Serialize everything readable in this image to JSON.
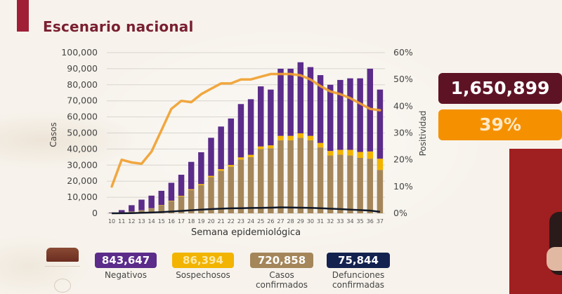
{
  "header": {
    "title": "Escenario nacional"
  },
  "summary": {
    "total": "1,650,899",
    "positivity": "39%"
  },
  "legend": [
    {
      "value": "843,647",
      "label": "Negativos",
      "color": "#5b2c8a"
    },
    {
      "value": "86,394",
      "label": "Sospechosos",
      "color": "#f2b400"
    },
    {
      "value": "720,858",
      "label": "Casos confirmados",
      "color": "#a4865a"
    },
    {
      "value": "75,844",
      "label": "Defunciones confirmadas",
      "color": "#13224f"
    }
  ],
  "colors": {
    "negativos": "#5b2c8a",
    "sospechosos": "#f2b400",
    "confirmados": "#a4865a",
    "defunciones": "#111827",
    "positividad": "#f0a030",
    "grid": "#d8d4ce"
  },
  "chart_data": {
    "type": "bar",
    "title": "Escenario nacional",
    "xlabel": "Semana epidemiológica",
    "ylabel": "Casos",
    "y2label": "Positividad",
    "ylim": [
      0,
      100000
    ],
    "y2lim": [
      0,
      0.6
    ],
    "y_ticks": [
      "0",
      "10,000",
      "20,000",
      "30,000",
      "40,000",
      "50,000",
      "60,000",
      "70,000",
      "80,000",
      "90,000",
      "100,000"
    ],
    "y2_ticks": [
      "0%",
      "10%",
      "20%",
      "30%",
      "40%",
      "50%",
      "60%"
    ],
    "grid": true,
    "stacked": true,
    "categories": [
      "10",
      "11",
      "12",
      "13",
      "14",
      "15",
      "16",
      "17",
      "18",
      "19",
      "20",
      "21",
      "22",
      "23",
      "24",
      "25",
      "26",
      "27",
      "28",
      "29",
      "30",
      "31",
      "32",
      "33",
      "34",
      "35",
      "36",
      "37"
    ],
    "series": [
      {
        "name": "Casos confirmados",
        "kind": "bar",
        "values": [
          200,
          600,
          1100,
          1800,
          3000,
          5000,
          7500,
          10500,
          14500,
          17500,
          22500,
          26500,
          29000,
          33500,
          35000,
          40000,
          40500,
          45500,
          45500,
          47000,
          45500,
          41000,
          36000,
          36500,
          36000,
          34500,
          34000,
          27000
        ]
      },
      {
        "name": "Sospechosos",
        "kind": "bar",
        "values": [
          0,
          0,
          50,
          100,
          150,
          200,
          300,
          400,
          500,
          700,
          800,
          1000,
          1100,
          1300,
          1400,
          1600,
          1800,
          2700,
          2700,
          2800,
          2700,
          2800,
          2800,
          3000,
          3500,
          3700,
          4500,
          7000
        ]
      },
      {
        "name": "Negativos",
        "kind": "bar",
        "values": [
          300,
          1400,
          3900,
          6600,
          7850,
          8800,
          11200,
          13100,
          17000,
          19800,
          23700,
          26500,
          28900,
          33200,
          34600,
          37400,
          34700,
          41800,
          41800,
          44200,
          42800,
          42200,
          41200,
          43500,
          44500,
          45800,
          51500,
          43000
        ]
      },
      {
        "name": "Defunciones confirmadas",
        "kind": "line",
        "values": [
          0,
          50,
          150,
          300,
          500,
          800,
          1100,
          1500,
          1900,
          2300,
          2600,
          2900,
          3100,
          3200,
          3300,
          3400,
          3500,
          3700,
          3600,
          3500,
          3400,
          3200,
          2900,
          2600,
          2300,
          2000,
          1700,
          900
        ]
      },
      {
        "name": "Positividad",
        "kind": "line",
        "axis": "right",
        "values": [
          0.1,
          0.2,
          0.19,
          0.185,
          0.23,
          0.31,
          0.39,
          0.42,
          0.415,
          0.445,
          0.465,
          0.485,
          0.485,
          0.5,
          0.5,
          0.51,
          0.52,
          0.52,
          0.52,
          0.515,
          0.5,
          0.475,
          0.455,
          0.445,
          0.43,
          0.41,
          0.39,
          0.385
        ]
      }
    ]
  }
}
